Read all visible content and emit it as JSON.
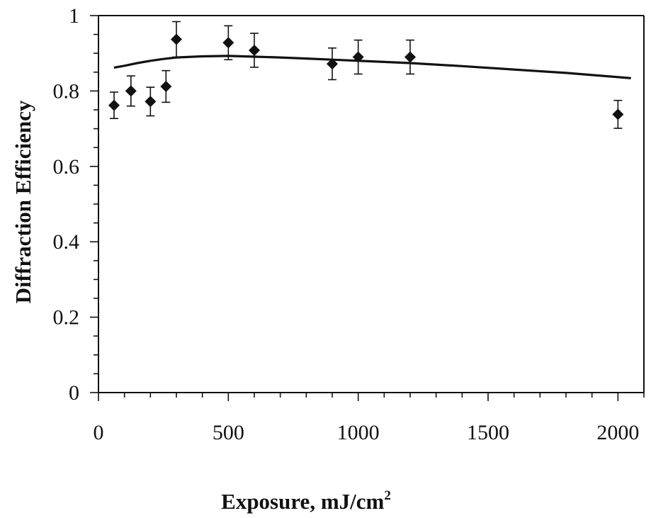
{
  "chart_data": {
    "type": "scatter",
    "title": "",
    "xlabel": "Exposure, mJ/cm",
    "xlabel_superscript": "2",
    "ylabel": "Diffraction Efficiency",
    "xlim": [
      0,
      2100
    ],
    "ylim": [
      0,
      1
    ],
    "x_ticks": [
      0,
      500,
      1000,
      1500,
      2000
    ],
    "x_tick_labels": [
      "0",
      "500",
      "1000",
      "1500",
      "2000"
    ],
    "y_ticks": [
      0,
      0.2,
      0.4,
      0.6,
      0.8,
      1
    ],
    "y_tick_labels": [
      "0",
      "0.2",
      "0.4",
      "0.6",
      "0.8",
      "1"
    ],
    "x_minor_tick_step": 100,
    "y_minor_tick_step": 0.05,
    "grid": false,
    "legend": "none",
    "marker": "diamond",
    "color": "#111111",
    "series": [
      {
        "kind": "points-with-error-bars",
        "points": [
          {
            "x": 60,
            "y": 0.762,
            "err": 0.035
          },
          {
            "x": 125,
            "y": 0.8,
            "err": 0.04
          },
          {
            "x": 200,
            "y": 0.772,
            "err": 0.038
          },
          {
            "x": 260,
            "y": 0.812,
            "err": 0.042
          },
          {
            "x": 300,
            "y": 0.937,
            "err": 0.047
          },
          {
            "x": 500,
            "y": 0.928,
            "err": 0.045
          },
          {
            "x": 600,
            "y": 0.908,
            "err": 0.045
          },
          {
            "x": 900,
            "y": 0.872,
            "err": 0.042
          },
          {
            "x": 1000,
            "y": 0.89,
            "err": 0.045
          },
          {
            "x": 1200,
            "y": 0.89,
            "err": 0.045
          },
          {
            "x": 2000,
            "y": 0.738,
            "err": 0.037
          }
        ]
      },
      {
        "kind": "curve",
        "points": [
          {
            "x": 60,
            "y": 0.862
          },
          {
            "x": 100,
            "y": 0.867
          },
          {
            "x": 150,
            "y": 0.874
          },
          {
            "x": 200,
            "y": 0.88
          },
          {
            "x": 250,
            "y": 0.885
          },
          {
            "x": 300,
            "y": 0.889
          },
          {
            "x": 400,
            "y": 0.892
          },
          {
            "x": 500,
            "y": 0.893
          },
          {
            "x": 600,
            "y": 0.891
          },
          {
            "x": 700,
            "y": 0.889
          },
          {
            "x": 800,
            "y": 0.886
          },
          {
            "x": 900,
            "y": 0.883
          },
          {
            "x": 1000,
            "y": 0.88
          },
          {
            "x": 1200,
            "y": 0.874
          },
          {
            "x": 1400,
            "y": 0.866
          },
          {
            "x": 1600,
            "y": 0.857
          },
          {
            "x": 1800,
            "y": 0.848
          },
          {
            "x": 2050,
            "y": 0.834
          }
        ]
      }
    ]
  }
}
